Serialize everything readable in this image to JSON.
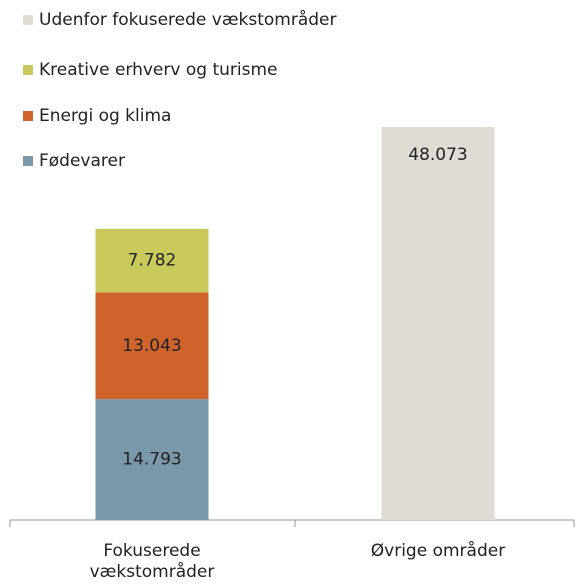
{
  "chart_data": {
    "type": "stacked-bar",
    "categories": [
      "Fokuserede vækstområder",
      "Øvrige områder"
    ],
    "series": [
      {
        "name": "Fødevarer",
        "color": "#7b98ab",
        "values": [
          14793,
          null
        ],
        "value_labels": [
          "14.793",
          null
        ]
      },
      {
        "name": "Energi og klima",
        "color": "#d0622c",
        "values": [
          13043,
          null
        ],
        "value_labels": [
          "13.043",
          null
        ]
      },
      {
        "name": "Kreative erhverv og turisme",
        "color": "#c9c95c",
        "values": [
          7782,
          null
        ],
        "value_labels": [
          "7.782",
          null
        ]
      },
      {
        "name": "Udenfor fokuserede vækstområder",
        "color": "#e0dbd3",
        "values": [
          null,
          48073
        ],
        "value_labels": [
          null,
          "48.073"
        ]
      }
    ],
    "legend": "top-left"
  }
}
